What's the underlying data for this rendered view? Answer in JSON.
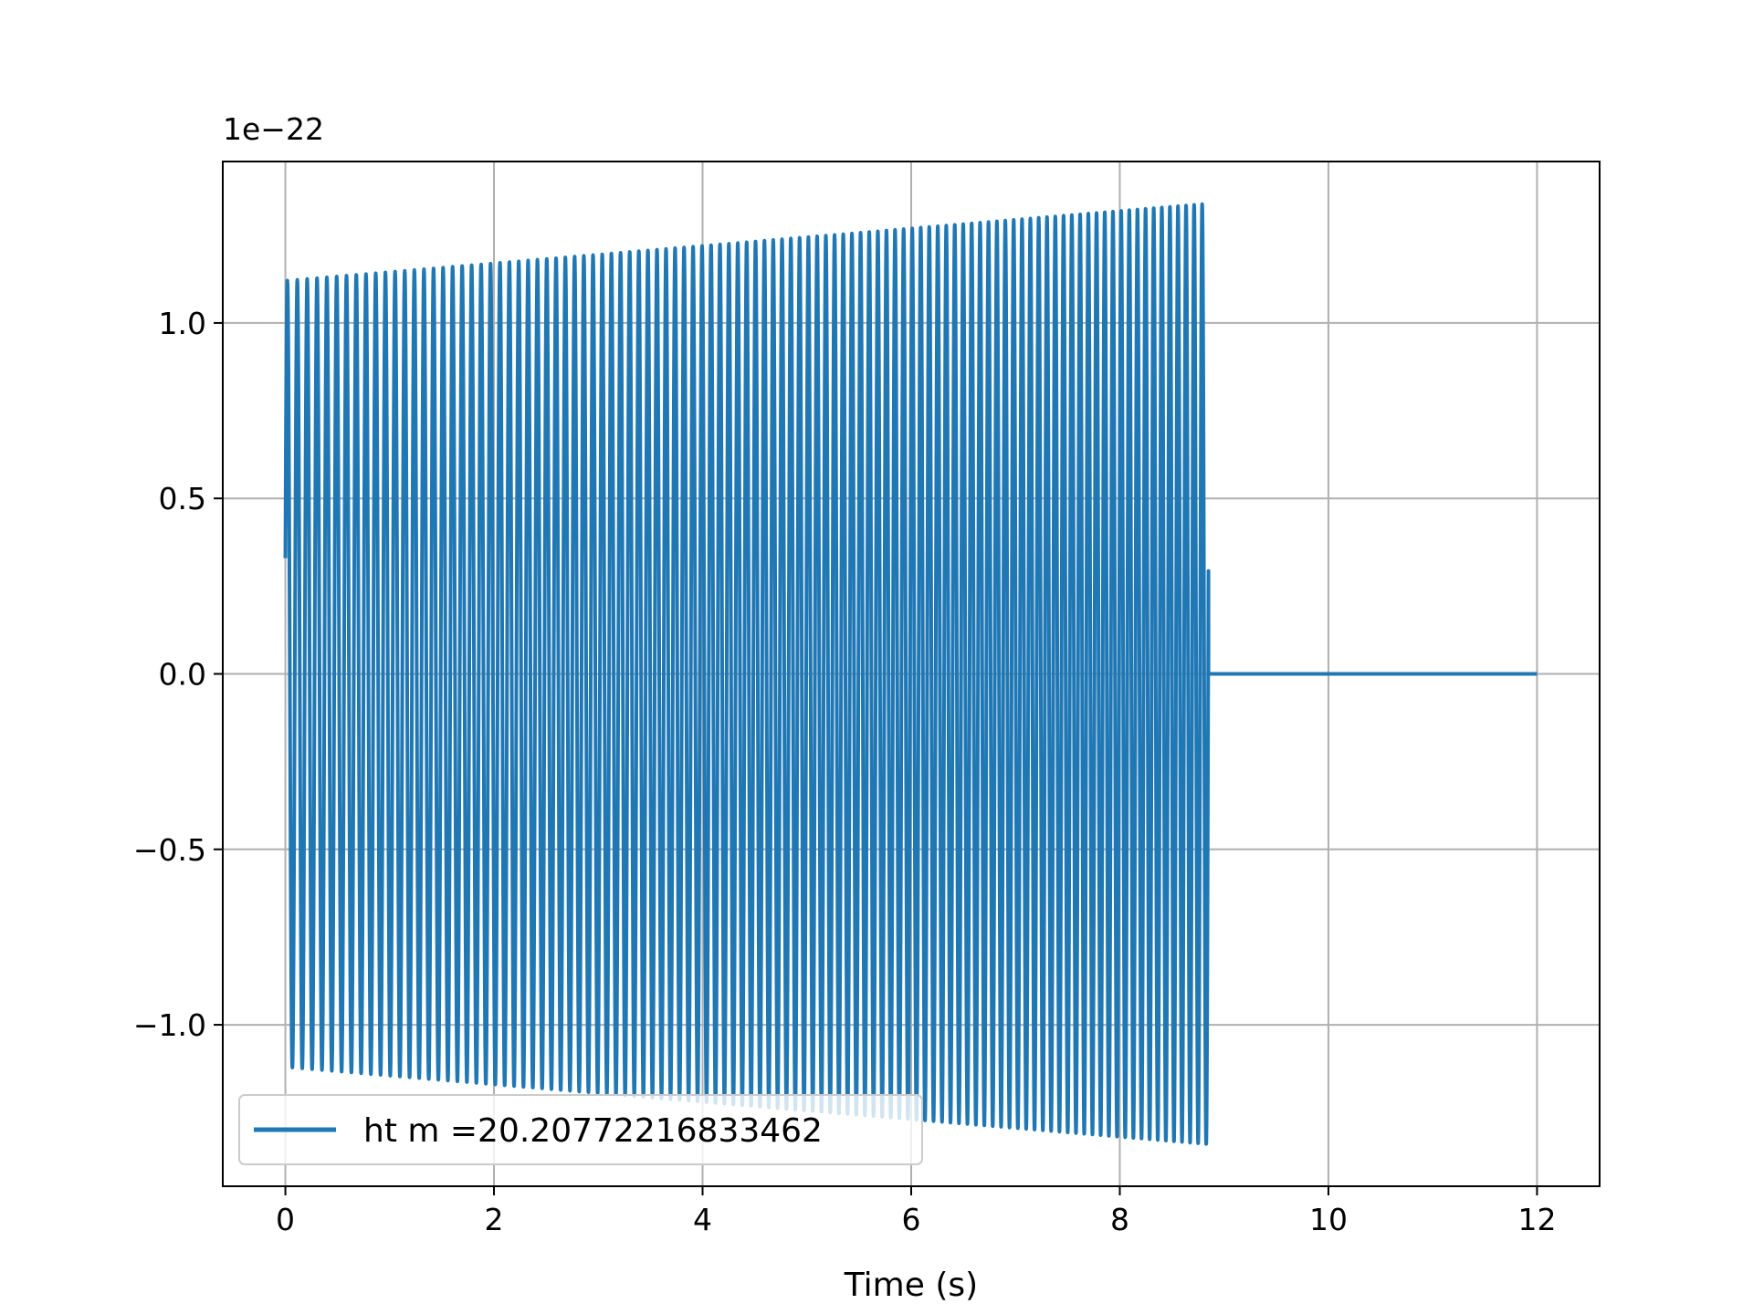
{
  "chart_data": {
    "type": "line",
    "title": "",
    "xlabel": "Time (s)",
    "ylabel": "",
    "y_offset_label": "1e−22",
    "xlim": [
      -0.6,
      12.6
    ],
    "ylim": [
      -1.46,
      1.46
    ],
    "x_ticks": [
      0,
      2,
      4,
      6,
      8,
      10,
      12
    ],
    "x_tick_labels": [
      "0",
      "2",
      "4",
      "6",
      "8",
      "10",
      "12"
    ],
    "y_ticks": [
      -1.0,
      -0.5,
      0.0,
      0.5,
      1.0
    ],
    "y_tick_labels": [
      "−1.0",
      "−0.5",
      "0.0",
      "0.5",
      "1.0"
    ],
    "grid": true,
    "legend_position": "lower-left",
    "colors": {
      "series": "#1f77b4",
      "grid": "#b0b0b0",
      "axes": "#000000"
    },
    "series": [
      {
        "name": "ht m =20.20772216833462",
        "t_start": 0.0,
        "t_merger": 8.85,
        "t_end": 12.0,
        "envelope_start": 1.12,
        "envelope_end": 1.34,
        "frequency_start_hz": 10.5,
        "frequency_end_hz": 13.0,
        "start_value": 0.33,
        "post_merger_value": 0.0
      }
    ]
  }
}
